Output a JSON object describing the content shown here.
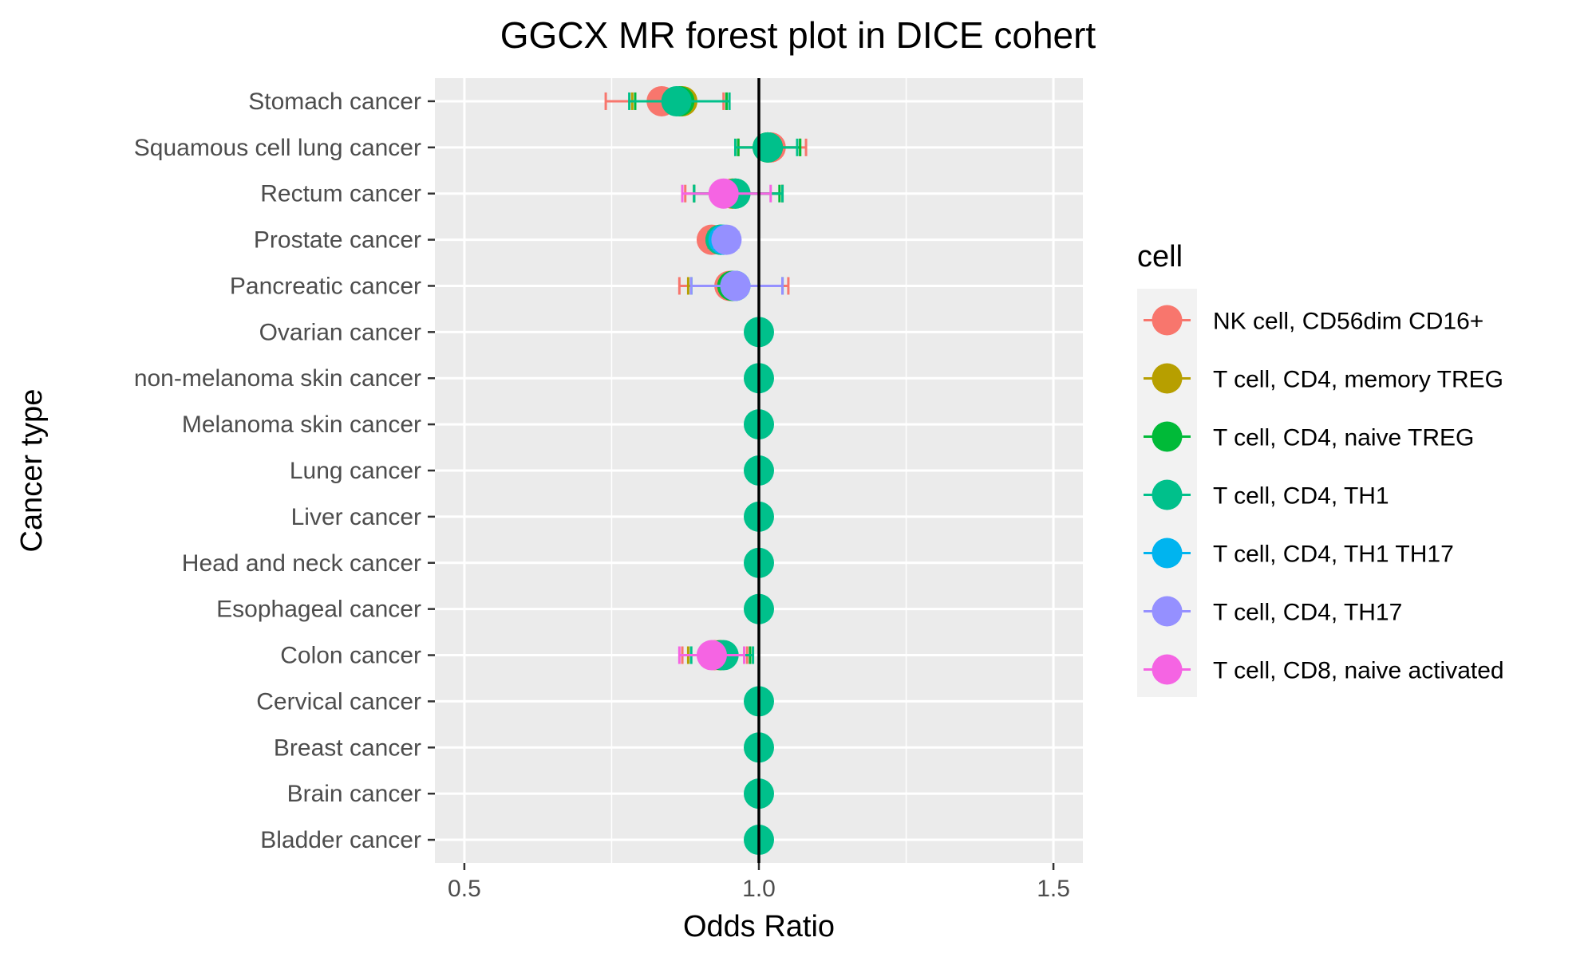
{
  "chart_data": {
    "type": "forest",
    "title": "GGCX MR forest plot in DICE cohert",
    "xlabel": "Odds Ratio",
    "ylabel": "Cancer type",
    "xlim": [
      0.45,
      1.55
    ],
    "xticks": [
      0.5,
      1.0,
      1.5
    ],
    "xtick_labels": [
      "0.5",
      "1.0",
      "1.5"
    ],
    "reference_line": 1.0,
    "grid": true,
    "legend": {
      "title": "cell",
      "position": "right"
    },
    "categories": [
      "Stomach cancer",
      "Squamous cell lung cancer",
      "Rectum cancer",
      "Prostate cancer",
      "Pancreatic cancer",
      "Ovarian cancer",
      "non-melanoma skin cancer",
      "Melanoma skin cancer",
      "Lung cancer",
      "Liver cancer",
      "Head and neck cancer",
      "Esophageal cancer",
      "Colon cancer",
      "Cervical cancer",
      "Breast cancer",
      "Brain cancer",
      "Bladder cancer"
    ],
    "series": [
      {
        "name": "NK cell, CD56dim CD16+",
        "color": "#F8766D",
        "points": [
          {
            "category": "Stomach cancer",
            "or": 0.835,
            "lo": 0.74,
            "hi": 0.94
          },
          {
            "category": "Squamous cell lung cancer",
            "or": 1.02,
            "lo": 0.965,
            "hi": 1.08
          },
          {
            "category": "Rectum cancer",
            "or": 0.955,
            "lo": 0.875,
            "hi": 1.04
          },
          {
            "category": "Prostate cancer",
            "or": 0.92,
            "lo": 0.905,
            "hi": 0.94
          },
          {
            "category": "Pancreatic cancer",
            "or": 0.95,
            "lo": 0.865,
            "hi": 1.05
          },
          {
            "category": "Colon cancer",
            "or": 0.925,
            "lo": 0.87,
            "hi": 0.98
          }
        ]
      },
      {
        "name": "T cell, CD4, memory TREG",
        "color": "#B79F00",
        "points": [
          {
            "category": "Stomach cancer",
            "or": 0.87,
            "lo": 0.785,
            "hi": 0.945
          },
          {
            "category": "Squamous cell lung cancer",
            "or": 1.015,
            "lo": 0.965,
            "hi": 1.07
          },
          {
            "category": "Rectum cancer",
            "or": 0.955,
            "lo": 0.89,
            "hi": 1.04
          },
          {
            "category": "Prostate cancer",
            "or": 0.935,
            "lo": 0.915,
            "hi": 0.955
          },
          {
            "category": "Pancreatic cancer",
            "or": 0.955,
            "lo": 0.88,
            "hi": 1.04
          },
          {
            "category": "Colon cancer",
            "or": 0.935,
            "lo": 0.88,
            "hi": 0.985
          }
        ]
      },
      {
        "name": "T cell, CD4, naive TREG",
        "color": "#00BA38",
        "points": [
          {
            "category": "Stomach cancer",
            "or": 0.865,
            "lo": 0.79,
            "hi": 0.945
          },
          {
            "category": "Squamous cell lung cancer",
            "or": 1.015,
            "lo": 0.965,
            "hi": 1.07
          },
          {
            "category": "Rectum cancer",
            "or": 0.96,
            "lo": 0.89,
            "hi": 1.035
          },
          {
            "category": "Prostate cancer",
            "or": 0.935,
            "lo": 0.915,
            "hi": 0.955
          },
          {
            "category": "Pancreatic cancer",
            "or": 0.955,
            "lo": 0.885,
            "hi": 1.04
          },
          {
            "category": "Colon cancer",
            "or": 0.935,
            "lo": 0.885,
            "hi": 0.985
          }
        ]
      },
      {
        "name": "T cell, CD4, TH1",
        "color": "#00C08B",
        "points": [
          {
            "category": "Stomach cancer",
            "or": 0.86,
            "lo": 0.78,
            "hi": 0.95
          },
          {
            "category": "Squamous cell lung cancer",
            "or": 1.015,
            "lo": 0.96,
            "hi": 1.065
          },
          {
            "category": "Rectum cancer",
            "or": 0.96,
            "lo": 0.89,
            "hi": 1.04
          },
          {
            "category": "Prostate cancer",
            "or": 0.935,
            "lo": 0.915,
            "hi": 0.955
          },
          {
            "category": "Pancreatic cancer",
            "or": 0.96,
            "lo": 0.885,
            "hi": 1.04
          },
          {
            "category": "Ovarian cancer",
            "or": 1.0,
            "lo": 1.0,
            "hi": 1.0
          },
          {
            "category": "non-melanoma skin cancer",
            "or": 1.0,
            "lo": 1.0,
            "hi": 1.0
          },
          {
            "category": "Melanoma skin cancer",
            "or": 1.0,
            "lo": 1.0,
            "hi": 1.0
          },
          {
            "category": "Lung cancer",
            "or": 1.0,
            "lo": 1.0,
            "hi": 1.0
          },
          {
            "category": "Liver cancer",
            "or": 1.0,
            "lo": 1.0,
            "hi": 1.0
          },
          {
            "category": "Head and neck cancer",
            "or": 1.0,
            "lo": 1.0,
            "hi": 1.0
          },
          {
            "category": "Esophageal cancer",
            "or": 1.0,
            "lo": 1.0,
            "hi": 1.0
          },
          {
            "category": "Colon cancer",
            "or": 0.94,
            "lo": 0.885,
            "hi": 0.99
          },
          {
            "category": "Cervical cancer",
            "or": 1.0,
            "lo": 1.0,
            "hi": 1.0
          },
          {
            "category": "Breast cancer",
            "or": 1.0,
            "lo": 1.0,
            "hi": 1.0
          },
          {
            "category": "Brain cancer",
            "or": 1.0,
            "lo": 1.0,
            "hi": 1.0
          },
          {
            "category": "Bladder cancer",
            "or": 1.0,
            "lo": 1.0,
            "hi": 1.0
          }
        ]
      },
      {
        "name": "T cell, CD4, TH1 TH17",
        "color": "#00B4EF",
        "points": [
          {
            "category": "Prostate cancer",
            "or": 0.94,
            "lo": 0.92,
            "hi": 0.96
          },
          {
            "category": "Pancreatic cancer",
            "or": 0.96,
            "lo": 0.885,
            "hi": 1.04
          }
        ]
      },
      {
        "name": "T cell, CD4, TH17",
        "color": "#9590FF",
        "points": [
          {
            "category": "Prostate cancer",
            "or": 0.945,
            "lo": 0.925,
            "hi": 0.965
          },
          {
            "category": "Pancreatic cancer",
            "or": 0.96,
            "lo": 0.885,
            "hi": 1.04
          }
        ]
      },
      {
        "name": "T cell, CD8, naive activated",
        "color": "#F564E3",
        "points": [
          {
            "category": "Rectum cancer",
            "or": 0.94,
            "lo": 0.87,
            "hi": 1.02
          },
          {
            "category": "Colon cancer",
            "or": 0.92,
            "lo": 0.865,
            "hi": 0.975
          }
        ]
      }
    ]
  }
}
